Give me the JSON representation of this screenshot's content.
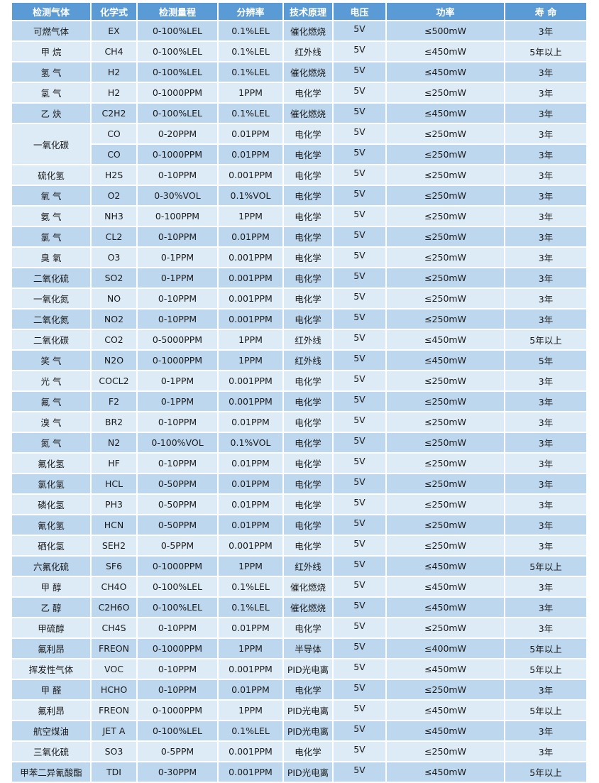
{
  "colors": {
    "header": "#5b9bd5",
    "row_dark": "#bdd7ee",
    "row_light": "#ddebf7"
  },
  "headers": [
    "检测气体",
    "化学式",
    "检测量程",
    "分辨率",
    "技术原理",
    "电压",
    "功率",
    "寿 命"
  ],
  "rows": [
    [
      "可燃气体",
      "EX",
      "0-100%LEL",
      "0.1%LEL",
      "催化燃烧",
      "5V",
      "≤500mW",
      "3年"
    ],
    [
      "甲 烷",
      "CH4",
      "0-100%LEL",
      "0.1%LEL",
      "红外线",
      "5V",
      "≤450mW",
      "5年以上"
    ],
    [
      "氢 气",
      "H2",
      "0-100%LEL",
      "0.1%LEL",
      "催化燃烧",
      "5V",
      "≤450mW",
      "3年"
    ],
    [
      "氢 气",
      "H2",
      "0-1000PPM",
      "1PPM",
      "电化学",
      "5V",
      "≤250mW",
      "3年"
    ],
    [
      "乙 炔",
      "C2H2",
      "0-100%LEL",
      "0.1%LEL",
      "催化燃烧",
      "5V",
      "≤450mW",
      "3年"
    ],
    [
      "一氧化碳",
      "CO",
      "0-20PPM",
      "0.01PPM",
      "电化学",
      "5V",
      "≤250mW",
      "3年"
    ],
    [
      "",
      "CO",
      "0-1000PPM",
      "0.01PPM",
      "电化学",
      "5V",
      "≤250mW",
      "3年"
    ],
    [
      "硫化氢",
      "H2S",
      "0-10PPM",
      "0.001PPM",
      "电化学",
      "5V",
      "≤250mW",
      "3年"
    ],
    [
      "氧 气",
      "O2",
      "0-30%VOL",
      "0.1%VOL",
      "电化学",
      "5V",
      "≤250mW",
      "3年"
    ],
    [
      "氨 气",
      "NH3",
      "0-100PPM",
      "1PPM",
      "电化学",
      "5V",
      "≤250mW",
      "3年"
    ],
    [
      "氯 气",
      "CL2",
      "0-10PPM",
      "0.01PPM",
      "电化学",
      "5V",
      "≤250mW",
      "3年"
    ],
    [
      "臭 氧",
      "O3",
      "0-1PPM",
      "0.001PPM",
      "电化学",
      "5V",
      "≤250mW",
      "3年"
    ],
    [
      "二氧化硫",
      "SO2",
      "0-1PPM",
      "0.001PPM",
      "电化学",
      "5V",
      "≤250mW",
      "3年"
    ],
    [
      "一氧化氮",
      "NO",
      "0-10PPM",
      "0.001PPM",
      "电化学",
      "5V",
      "≤250mW",
      "3年"
    ],
    [
      "二氧化氮",
      "NO2",
      "0-10PPM",
      "0.001PPM",
      "电化学",
      "5V",
      "≤250mW",
      "3年"
    ],
    [
      "二氧化碳",
      "CO2",
      "0-5000PPM",
      "1PPM",
      "红外线",
      "5V",
      "≤450mW",
      "5年以上"
    ],
    [
      "笑 气",
      "N2O",
      "0-1000PPM",
      "1PPM",
      "红外线",
      "5V",
      "≤450mW",
      "5年"
    ],
    [
      "光 气",
      "COCL2",
      "0-1PPM",
      "0.001PPM",
      "电化学",
      "5V",
      "≤250mW",
      "3年"
    ],
    [
      "氟 气",
      "F2",
      "0-1PPM",
      "0.001PPM",
      "电化学",
      "5V",
      "≤250mW",
      "3年"
    ],
    [
      "溴 气",
      "BR2",
      "0-10PPM",
      "0.01PPM",
      "电化学",
      "5V",
      "≤250mW",
      "3年"
    ],
    [
      "氮 气",
      "N2",
      "0-100%VOL",
      "0.1%VOL",
      "电化学",
      "5V",
      "≤250mW",
      "3年"
    ],
    [
      "氟化氢",
      "HF",
      "0-10PPM",
      "0.01PPM",
      "电化学",
      "5V",
      "≤250mW",
      "3年"
    ],
    [
      "氯化氢",
      "HCL",
      "0-50PPM",
      "0.01PPM",
      "电化学",
      "5V",
      "≤250mW",
      "3年"
    ],
    [
      "磷化氢",
      "PH3",
      "0-50PPM",
      "0.01PPM",
      "电化学",
      "5V",
      "≤250mW",
      "3年"
    ],
    [
      "氰化氢",
      "HCN",
      "0-50PPM",
      "0.01PPM",
      "电化学",
      "5V",
      "≤250mW",
      "3年"
    ],
    [
      "硒化氢",
      "SEH2",
      "0-5PPM",
      "0.001PPM",
      "电化学",
      "5V",
      "≤250mW",
      "3年"
    ],
    [
      "六氟化硫",
      "SF6",
      "0-1000PPM",
      "1PPM",
      "红外线",
      "5V",
      "≤450mW",
      "5年以上"
    ],
    [
      "甲 醇",
      "CH4O",
      "0-100%LEL",
      "0.1%LEL",
      "催化燃烧",
      "5V",
      "≤450mW",
      "3年"
    ],
    [
      "乙 醇",
      "C2H6O",
      "0-100%LEL",
      "0.1%LEL",
      "催化燃烧",
      "5V",
      "≤450mW",
      "3年"
    ],
    [
      "甲硫醇",
      "CH4S",
      "0-10PPM",
      "0.01PPM",
      "电化学",
      "5V",
      "≤250mW",
      "3年"
    ],
    [
      "氟利昂",
      "FREON",
      "0-1000PPM",
      "1PPM",
      "半导体",
      "5V",
      "≤400mW",
      "5年以上"
    ],
    [
      "挥发性气体",
      "VOC",
      "0-10PPM",
      "0.001PPM",
      "PID光电离",
      "5V",
      "≤450mW",
      "5年以上"
    ],
    [
      "甲 醛",
      "HCHO",
      "0-10PPM",
      "0.01PPM",
      "电化学",
      "5V",
      "≤250mW",
      "3年"
    ],
    [
      "氟利昂",
      "FREON",
      "0-1000PPM",
      "1PPM",
      "PID光电离",
      "5V",
      "≤450mW",
      "5年以上"
    ],
    [
      "航空煤油",
      "JET A",
      "0-100%LEL",
      "0.1%LEL",
      "PID光电离",
      "5V",
      "≤450mW",
      "3年"
    ],
    [
      "三氧化硫",
      "SO3",
      "0-5PPM",
      "0.001PPM",
      "电化学",
      "5V",
      "≤250mW",
      "3年"
    ],
    [
      "甲苯二异氰酸酯",
      "TDI",
      "0-30PPM",
      "0.001PPM",
      "PID光电离",
      "5V",
      "≤450mW",
      "5年以上"
    ]
  ]
}
